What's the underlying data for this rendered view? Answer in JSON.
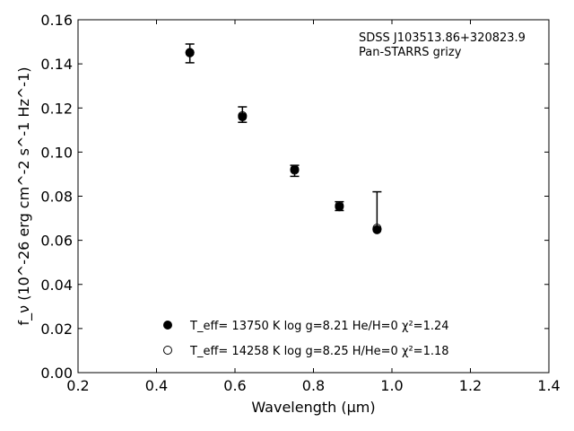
{
  "chart_data": {
    "type": "scatter",
    "xlabel": "Wavelength (μm)",
    "ylabel": "f_ν (10^-26 erg cm^-2 s^-1 Hz^-1)",
    "xlim": [
      0.2,
      1.4
    ],
    "ylim": [
      0.0,
      0.16
    ],
    "xticks": [
      "0.2",
      "0.4",
      "0.6",
      "0.8",
      "1.0",
      "1.2",
      "1.4"
    ],
    "yticks": [
      "0.00",
      "0.02",
      "0.04",
      "0.06",
      "0.08",
      "0.10",
      "0.12",
      "0.14",
      "0.16"
    ],
    "grid": false,
    "annotations": [
      "SDSS J103513.86+320823.9",
      "Pan-STARRS grizy"
    ],
    "observed": [
      {
        "x": 0.485,
        "y": 0.1448,
        "ylow": 0.1405,
        "yhigh": 0.149
      },
      {
        "x": 0.619,
        "y": 0.1168,
        "ylow": 0.1135,
        "yhigh": 0.1205
      },
      {
        "x": 0.752,
        "y": 0.092,
        "ylow": 0.089,
        "yhigh": 0.094
      },
      {
        "x": 0.866,
        "y": 0.0755,
        "ylow": 0.0735,
        "yhigh": 0.0775
      },
      {
        "x": 0.962,
        "y": 0.065,
        "ylow": 0.065,
        "yhigh": 0.082
      }
    ],
    "series": [
      {
        "name": "T_eff= 13750 K  log g=8.21  He/H=0  χ²=1.24",
        "marker": "filled",
        "x": [
          0.485,
          0.619,
          0.752,
          0.866,
          0.962
        ],
        "y": [
          0.1452,
          0.116,
          0.0922,
          0.0752,
          0.0648
        ]
      },
      {
        "name": "T_eff= 14258 K  log g=8.25  H/He=0  χ²=1.18",
        "marker": "open",
        "x": [
          0.485,
          0.619,
          0.752,
          0.866,
          0.962
        ],
        "y": [
          0.145,
          0.1165,
          0.0918,
          0.0757,
          0.0655
        ]
      }
    ]
  }
}
